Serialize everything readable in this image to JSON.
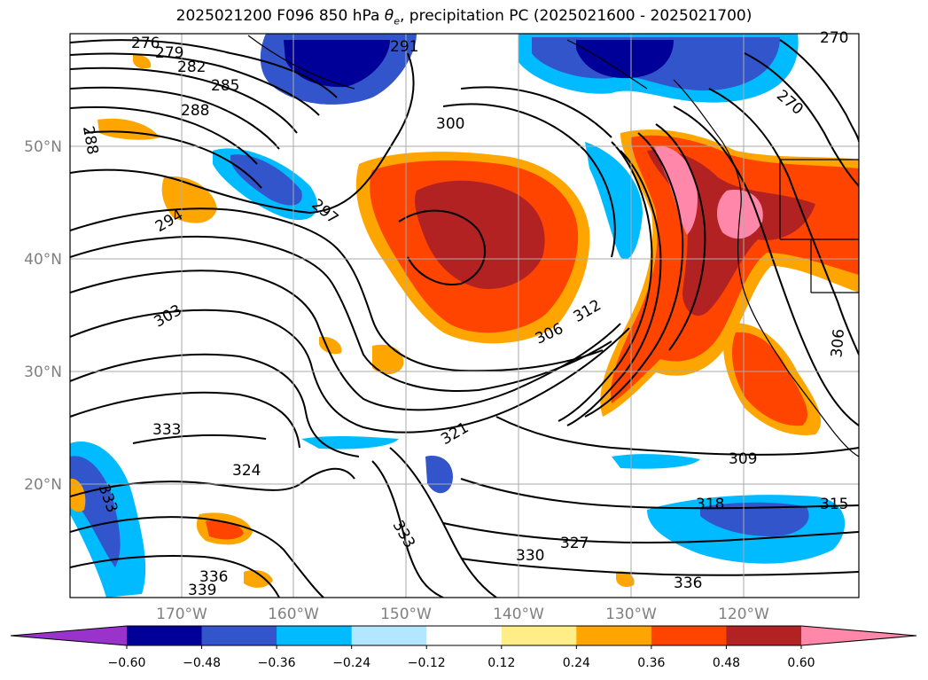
{
  "title": "2025021200 F096 850 hPa θe, precipitation PC (2025021600 - 2025021700)",
  "title_parts": {
    "prefix": "2025021200 F096 850 hPa ",
    "theta": "θ",
    "sub": "e",
    "suffix": ", precipitation PC (2025021600 - 2025021700)"
  },
  "latitude_labels": [
    "50°N",
    "40°N",
    "30°N",
    "20°N"
  ],
  "longitude_labels": [
    "170°W",
    "160°W",
    "150°W",
    "140°W",
    "130°W",
    "120°W"
  ],
  "colorbar": {
    "tick_labels": [
      "−0.60",
      "−0.48",
      "−0.36",
      "−0.24",
      "−0.12",
      "0.12",
      "0.24",
      "0.36",
      "0.48",
      "0.60"
    ],
    "colors": [
      "#9933cc",
      "#000099",
      "#3355cc",
      "#00bbff",
      "#b3e6ff",
      "#ffffff",
      "#ffee88",
      "#ffa500",
      "#ff4400",
      "#b22222",
      "#ff88aa"
    ]
  },
  "contour_labels": [
    "276",
    "279",
    "282",
    "285",
    "288",
    "288",
    "291",
    "294",
    "297",
    "300",
    "303",
    "306",
    "312",
    "321",
    "324",
    "327",
    "330",
    "333",
    "333",
    "333",
    "336",
    "336",
    "339",
    "318",
    "309",
    "315",
    "306",
    "270",
    "270"
  ]
}
